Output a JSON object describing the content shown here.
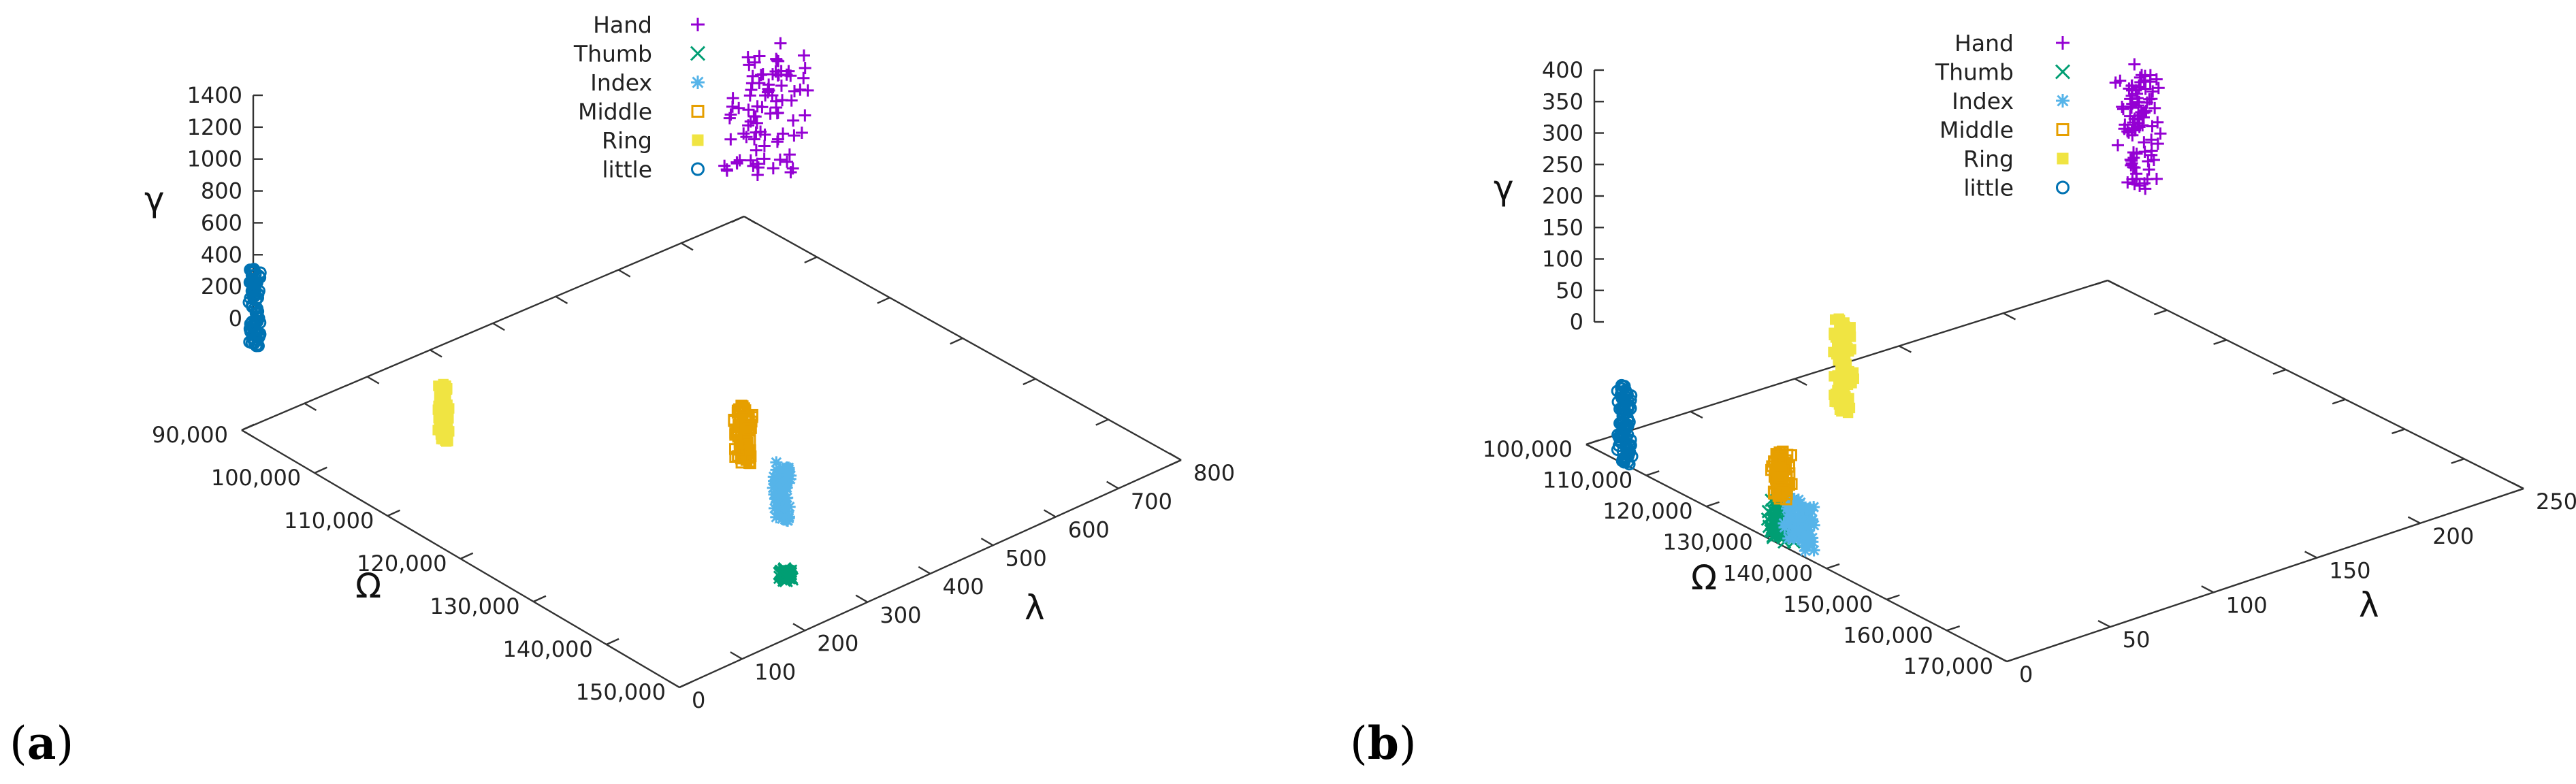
{
  "colors": {
    "Hand": "#9400d3",
    "Thumb": "#009e73",
    "Index": "#56b4e9",
    "Middle": "#e69f00",
    "Ring": "#f0e442",
    "little": "#0072b2"
  },
  "chart_data": [
    {
      "type": "scatter3d",
      "panel_label_open": "(",
      "panel_label": "a",
      "panel_label_close": ")",
      "legend": [
        {
          "name": "Hand",
          "marker": "plus"
        },
        {
          "name": "Thumb",
          "marker": "cross"
        },
        {
          "name": "Index",
          "marker": "star"
        },
        {
          "name": "Middle",
          "marker": "open-square"
        },
        {
          "name": "Ring",
          "marker": "filled-square"
        },
        {
          "name": "little",
          "marker": "open-circle"
        }
      ],
      "legend_position": "top-center",
      "axes": {
        "x": {
          "label": "λ",
          "range": [
            0,
            800
          ],
          "ticks": [
            "0",
            "100",
            "200",
            "300",
            "400",
            "500",
            "600",
            "700",
            "800"
          ]
        },
        "y": {
          "label": "Ω",
          "range": [
            90000,
            150000
          ],
          "ticks": [
            "90,000",
            "100,000",
            "110,000",
            "120,000",
            "130,000",
            "140,000",
            "150,000"
          ]
        },
        "z": {
          "label": "γ",
          "range": [
            0,
            1400
          ],
          "ticks": [
            "0",
            "200",
            "400",
            "600",
            "800",
            "1000",
            "1200",
            "1400"
          ]
        }
      },
      "grid": false,
      "series": [
        {
          "name": "Hand",
          "lambda": [
            700,
            800
          ],
          "omega": [
            95000,
            100000
          ],
          "gamma": [
            500,
            1200
          ]
        },
        {
          "name": "Thumb",
          "lambda": [
            240,
            250
          ],
          "omega": [
            143000,
            144000
          ],
          "gamma": [
            70,
            120
          ]
        },
        {
          "name": "Index",
          "lambda": [
            345,
            355
          ],
          "omega": [
            133000,
            135000
          ],
          "gamma": [
            0,
            350
          ]
        },
        {
          "name": "Middle",
          "lambda": [
            400,
            410
          ],
          "omega": [
            123000,
            125000
          ],
          "gamma": [
            0,
            350
          ]
        },
        {
          "name": "Ring",
          "lambda": [
            160,
            170
          ],
          "omega": [
            103000,
            104000
          ],
          "gamma": [
            0,
            350
          ]
        },
        {
          "name": "little",
          "lambda": [
            10,
            20
          ],
          "omega": [
            90000,
            91000
          ],
          "gamma": [
            500,
            1000
          ]
        }
      ]
    },
    {
      "type": "scatter3d",
      "panel_label_open": "(",
      "panel_label": "b",
      "panel_label_close": ")",
      "legend": [
        {
          "name": "Hand",
          "marker": "plus"
        },
        {
          "name": "Thumb",
          "marker": "cross"
        },
        {
          "name": "Index",
          "marker": "star"
        },
        {
          "name": "Middle",
          "marker": "open-square"
        },
        {
          "name": "Ring",
          "marker": "filled-square"
        },
        {
          "name": "little",
          "marker": "open-circle"
        }
      ],
      "legend_position": "top-center",
      "axes": {
        "x": {
          "label": "λ",
          "range": [
            0,
            250
          ],
          "ticks": [
            "0",
            "50",
            "100",
            "150",
            "200",
            "250"
          ]
        },
        "y": {
          "label": "Ω",
          "range": [
            100000,
            170000
          ],
          "ticks": [
            "100,000",
            "110,000",
            "120,000",
            "130,000",
            "140,000",
            "150,000",
            "160,000",
            "170,000"
          ]
        },
        "z": {
          "label": "γ",
          "range": [
            0,
            400
          ],
          "ticks": [
            "0",
            "50",
            "100",
            "150",
            "200",
            "250",
            "300",
            "350",
            "400"
          ]
        }
      },
      "grid": false,
      "series": [
        {
          "name": "Hand",
          "lambda": [
            240,
            250
          ],
          "omega": [
            105000,
            110000
          ],
          "gamma": [
            180,
            360
          ]
        },
        {
          "name": "Thumb",
          "lambda": [
            0,
            5
          ],
          "omega": [
            130000,
            133000
          ],
          "gamma": [
            0,
            70
          ]
        },
        {
          "name": "Index",
          "lambda": [
            2,
            7
          ],
          "omega": [
            132000,
            136000
          ],
          "gamma": [
            0,
            70
          ]
        },
        {
          "name": "Middle",
          "lambda": [
            25,
            30
          ],
          "omega": [
            122000,
            124000
          ],
          "gamma": [
            0,
            70
          ]
        },
        {
          "name": "Ring",
          "lambda": [
            90,
            95
          ],
          "omega": [
            110000,
            112000
          ],
          "gamma": [
            0,
            150
          ]
        },
        {
          "name": "little",
          "lambda": [
            0,
            3
          ],
          "omega": [
            105000,
            107000
          ],
          "gamma": [
            0,
            120
          ]
        }
      ]
    }
  ]
}
